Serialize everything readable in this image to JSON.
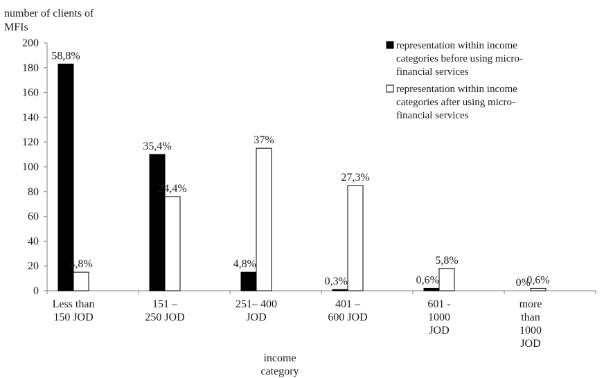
{
  "chart_data": {
    "type": "bar",
    "ylabel_lines": [
      "number of clients of",
      "MFIs"
    ],
    "xlabel_lines": [
      "income",
      "category"
    ],
    "ylim": [
      0,
      200
    ],
    "yticks": [
      0,
      20,
      40,
      60,
      80,
      100,
      120,
      140,
      160,
      180,
      200
    ],
    "grid": false,
    "legend_position": "top-right",
    "categories": [
      [
        "Less than",
        "150 JOD"
      ],
      [
        "151 –",
        "250 JOD"
      ],
      [
        "251– 400",
        "JOD"
      ],
      [
        "401 –",
        "600 JOD"
      ],
      [
        "601 -",
        "1000",
        "JOD"
      ],
      [
        "more",
        "than",
        "1000",
        "JOD"
      ]
    ],
    "series": [
      {
        "name_lines": [
          "representation within income",
          "categories before using micro-",
          "financial services"
        ],
        "color": "#000000",
        "values": [
          183,
          110,
          15,
          1,
          2,
          0
        ],
        "labels": [
          "58,8%",
          "35,4%",
          "4,8%",
          "0,3%",
          "0,6%",
          "0%"
        ]
      },
      {
        "name_lines": [
          "representation within income",
          "categories after using micro-",
          "financial services"
        ],
        "color": "#ffffff",
        "values": [
          15,
          76,
          115,
          85,
          18,
          2
        ],
        "labels": [
          "4,8%",
          "24,4%",
          "37%",
          "27,3%",
          "5,8%",
          "0,6%"
        ]
      }
    ]
  }
}
